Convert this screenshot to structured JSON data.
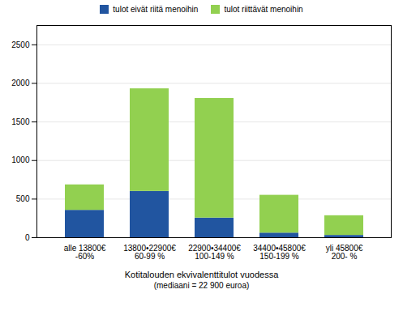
{
  "chart_data": {
    "type": "bar",
    "stacked": true,
    "categories": [
      "alle 13800€\n-60%",
      "13800•22900€\n60-99 %",
      "22900•34400€\n100-149 %",
      "34400•45800€\n150-199 %",
      "yli 45800€\n200- %"
    ],
    "series": [
      {
        "name": "tulot eivät riitä menoihin",
        "color": "#2155A0",
        "values": [
          355,
          600,
          255,
          60,
          30
        ]
      },
      {
        "name": "tulot riittävät menoihin",
        "color": "#92D050",
        "values": [
          330,
          1330,
          1550,
          490,
          255
        ]
      }
    ],
    "xlabel": "Kotitalouden ekvivalenttitulot vuodessa\n(mediaani = 22 900 euroa)",
    "ylim": [
      0,
      2750
    ],
    "yticks": [
      0,
      500,
      1000,
      1500,
      2000,
      2500
    ],
    "grid": true,
    "legend": "top"
  }
}
